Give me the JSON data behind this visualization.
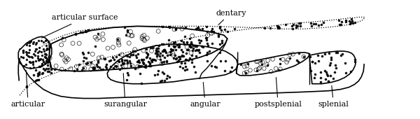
{
  "background_color": "#ffffff",
  "figsize": [
    6.0,
    1.7
  ],
  "dpi": 100,
  "labels": {
    "articular_surface": "articular surface",
    "dentary": "dentary",
    "articular": "articular",
    "surangular": "surangular",
    "angular": "angular",
    "postsplenial": "postsplenial",
    "splenial": "splenial"
  },
  "font_size": 8.0
}
